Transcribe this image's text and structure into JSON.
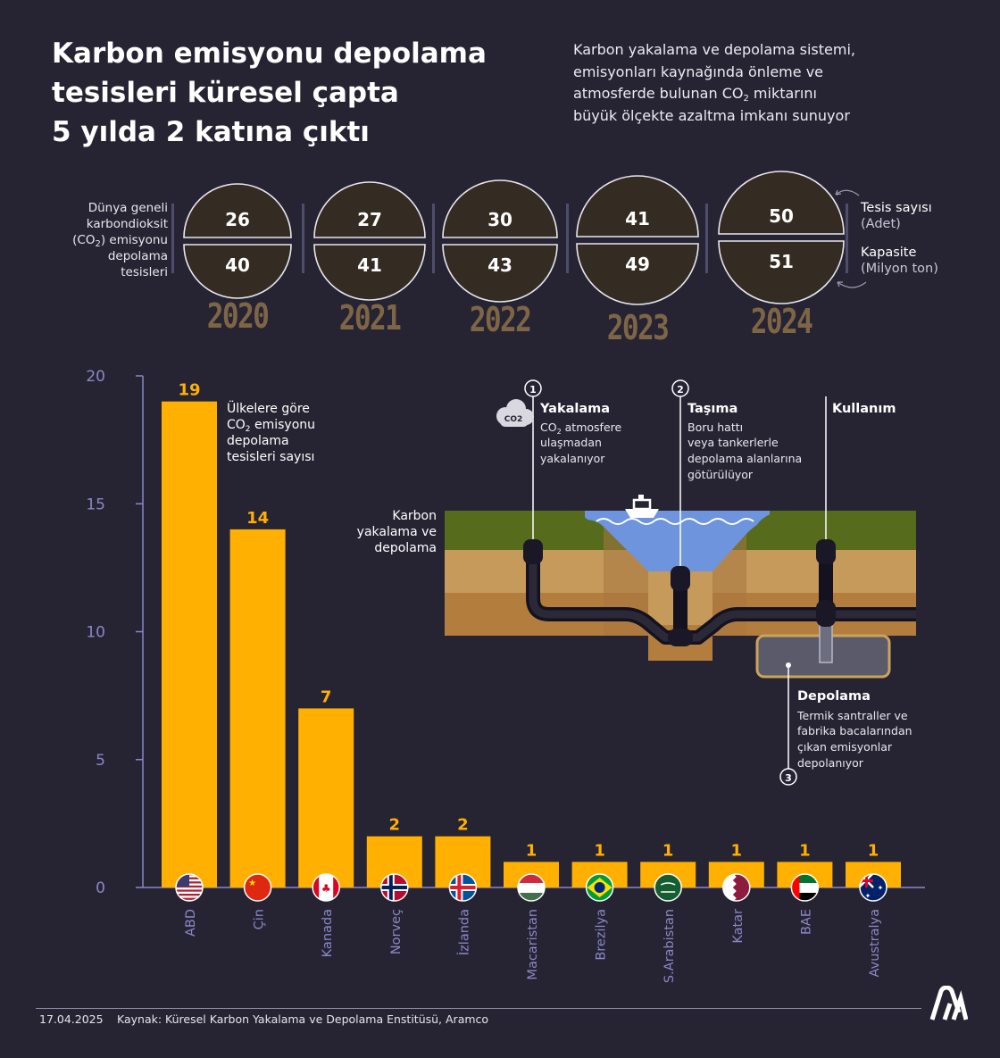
{
  "header": {
    "title_lines": [
      "Karbon emisyonu depolama",
      "tesisleri küresel çapta",
      "5 yılda 2 katına çıktı"
    ],
    "subtitle_lines": [
      "Karbon yakalama ve depolama sistemi,",
      "emisyonları kaynağında önleme ve",
      "atmosferde bulunan CO",
      "2",
      " miktarını",
      "büyük ölçekte azaltma imkanı sunuyor"
    ]
  },
  "world_panel": {
    "label_lines": [
      "Dünya geneli",
      "karbondioksit",
      "(CO",
      "2",
      ") emisyonu",
      "depolama",
      "tesisleri"
    ],
    "years": [
      {
        "year": "2020",
        "facilities": "26",
        "capacity": "40"
      },
      {
        "year": "2021",
        "facilities": "27",
        "capacity": "41"
      },
      {
        "year": "2022",
        "facilities": "30",
        "capacity": "43"
      },
      {
        "year": "2023",
        "facilities": "41",
        "capacity": "49"
      },
      {
        "year": "2024",
        "facilities": "50",
        "capacity": "51"
      }
    ],
    "legend": {
      "facilities_title": "Tesis sayısı",
      "facilities_unit": "(Adet)",
      "capacity_title": "Kapasite",
      "capacity_unit": "(Milyon ton)"
    }
  },
  "chart_data": {
    "type": "bar",
    "title": "Ülkelere göre CO2 emisyonu depolama tesisleri sayısı",
    "title_lines": [
      "Ülkelere göre",
      "CO",
      "2",
      " emisyonu",
      "depolama",
      "tesisleri sayısı"
    ],
    "categories": [
      "ABD",
      "Çin",
      "Kanada",
      "Norveç",
      "İzlanda",
      "Macaristan",
      "Brezilya",
      "S.Arabistan",
      "Katar",
      "BAE",
      "Avustralya"
    ],
    "values": [
      19,
      14,
      7,
      2,
      2,
      1,
      1,
      1,
      1,
      1,
      1
    ],
    "ylim": [
      0,
      20
    ],
    "yticks": [
      0,
      5,
      10,
      15,
      20
    ],
    "bar_color": "#ffb000",
    "label_color": "#ffb000"
  },
  "process": {
    "main_label_lines": [
      "Karbon",
      "yakalama ve",
      "depolama"
    ],
    "steps": [
      {
        "num": "1",
        "title": "Yakalama",
        "desc_lines": [
          "CO",
          "2",
          " atmosfere",
          "ulaşmadan",
          "yakalanıyor"
        ]
      },
      {
        "num": "2",
        "title": "Taşıma",
        "desc_lines": [
          "Boru hattı",
          "veya tankerlerle",
          "depolama alanlarına",
          "götürülüyor"
        ]
      },
      {
        "num": "",
        "title": "Kullanım",
        "desc_lines": []
      },
      {
        "num": "3",
        "title": "Depolama",
        "desc_lines": [
          "Termik santraller ve",
          "fabrika bacalarından",
          "çıkan emisyonlar",
          "depolanıyor"
        ]
      }
    ],
    "co2_icon_text": "CO2"
  },
  "footer": {
    "date": "17.04.2025",
    "source": "Kaynak: Küresel Karbon Yakalama ve Depolama Enstitüsü, Aramco"
  },
  "colors": {
    "background": "#262433",
    "bar": "#ffb000",
    "axis": "#8a88c7",
    "globe_fill": "#342b22",
    "year_text": "#7d6546"
  }
}
